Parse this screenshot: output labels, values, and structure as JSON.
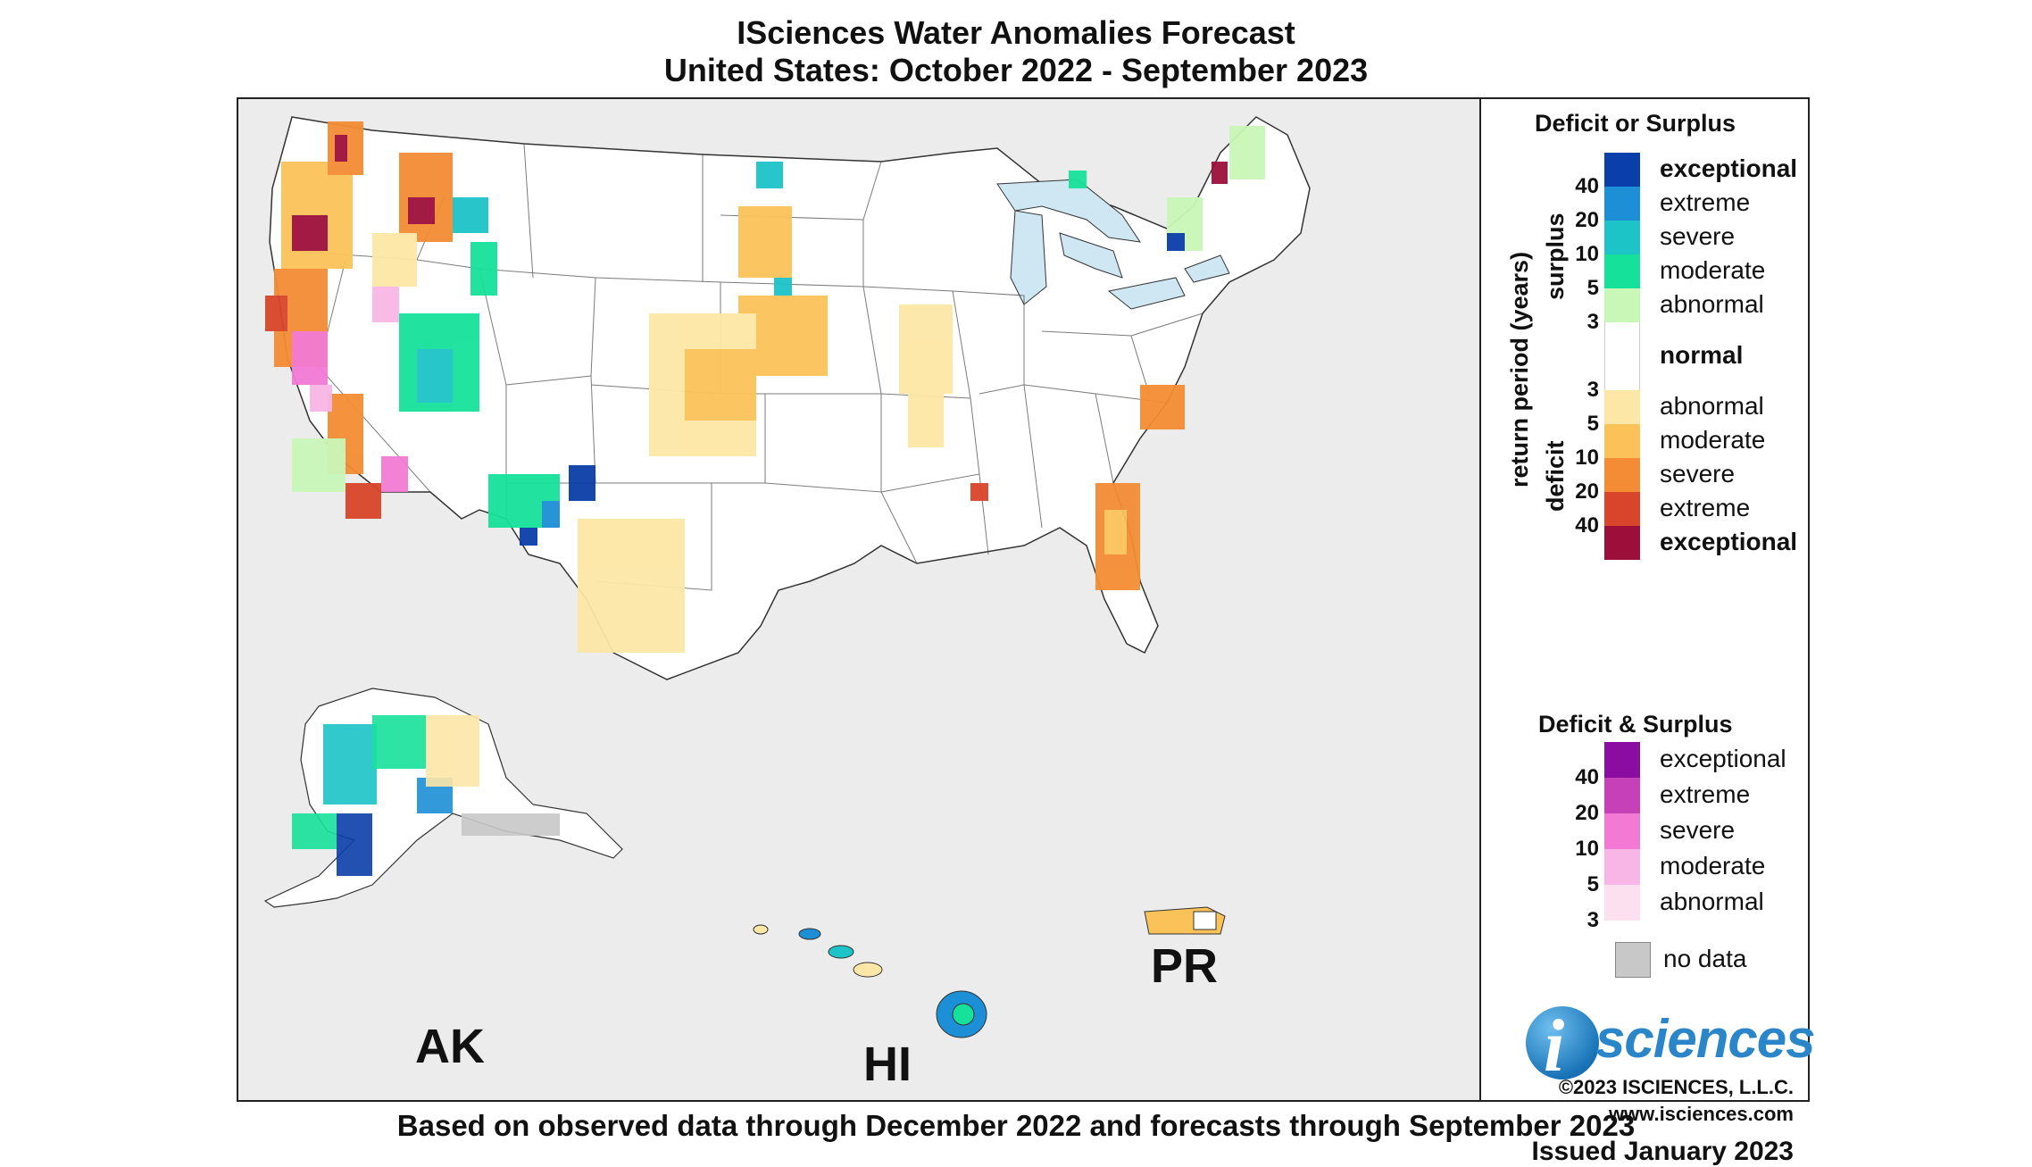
{
  "title_line1": "ISciences Water Anomalies Forecast",
  "title_line2": "United States: October 2022 - September 2023",
  "footer": "Based on observed data through December 2022 and forecasts through September 2023",
  "map": {
    "region_labels": {
      "ak": "AK",
      "hi": "HI",
      "pr": "PR"
    },
    "background_color": "#ececec",
    "land_color": "#ffffff",
    "lake_color": "#cfe7f3"
  },
  "legend": {
    "deficit_or_surplus_title": "Deficit or Surplus",
    "axis_title": "return period (years)",
    "surplus_label": "surplus",
    "deficit_label": "deficit",
    "surplus_classes": [
      {
        "label": "exceptional",
        "color": "#0a3ea8",
        "bold": true
      },
      {
        "label": "extreme",
        "color": "#1d8fd6",
        "bold": false
      },
      {
        "label": "severe",
        "color": "#1cc3c7",
        "bold": false
      },
      {
        "label": "moderate",
        "color": "#16e19a",
        "bold": false
      },
      {
        "label": "abnormal",
        "color": "#c9f7b8",
        "bold": false
      }
    ],
    "normal": {
      "label": "normal",
      "color": "#ffffff"
    },
    "deficit_classes": [
      {
        "label": "abnormal",
        "color": "#fde7a6",
        "bold": false
      },
      {
        "label": "moderate",
        "color": "#fbc25a",
        "bold": false
      },
      {
        "label": "severe",
        "color": "#f38c34",
        "bold": false
      },
      {
        "label": "extreme",
        "color": "#d9452a",
        "bold": false
      },
      {
        "label": "exceptional",
        "color": "#9c0f3b",
        "bold": true
      }
    ],
    "surplus_ticks": [
      "40",
      "20",
      "10",
      "5",
      "3"
    ],
    "deficit_ticks": [
      "3",
      "5",
      "10",
      "20",
      "40"
    ],
    "deficit_and_surplus_title": "Deficit & Surplus",
    "both_classes": [
      {
        "label": "exceptional",
        "color": "#8a0ca0"
      },
      {
        "label": "extreme",
        "color": "#c640b8"
      },
      {
        "label": "severe",
        "color": "#f27ad4"
      },
      {
        "label": "moderate",
        "color": "#f8b6e6"
      },
      {
        "label": "abnormal",
        "color": "#fde0f0"
      }
    ],
    "both_ticks": [
      "40",
      "20",
      "10",
      "5",
      "3"
    ],
    "no_data": {
      "label": "no data",
      "color": "#c8c8c8"
    }
  },
  "branding": {
    "logo_letter": "i",
    "logo_text": "sciences",
    "copyright": "©2023 ISCIENCES, L.L.C.",
    "website": "www.isciences.com",
    "issued": "Issued January 2023"
  }
}
